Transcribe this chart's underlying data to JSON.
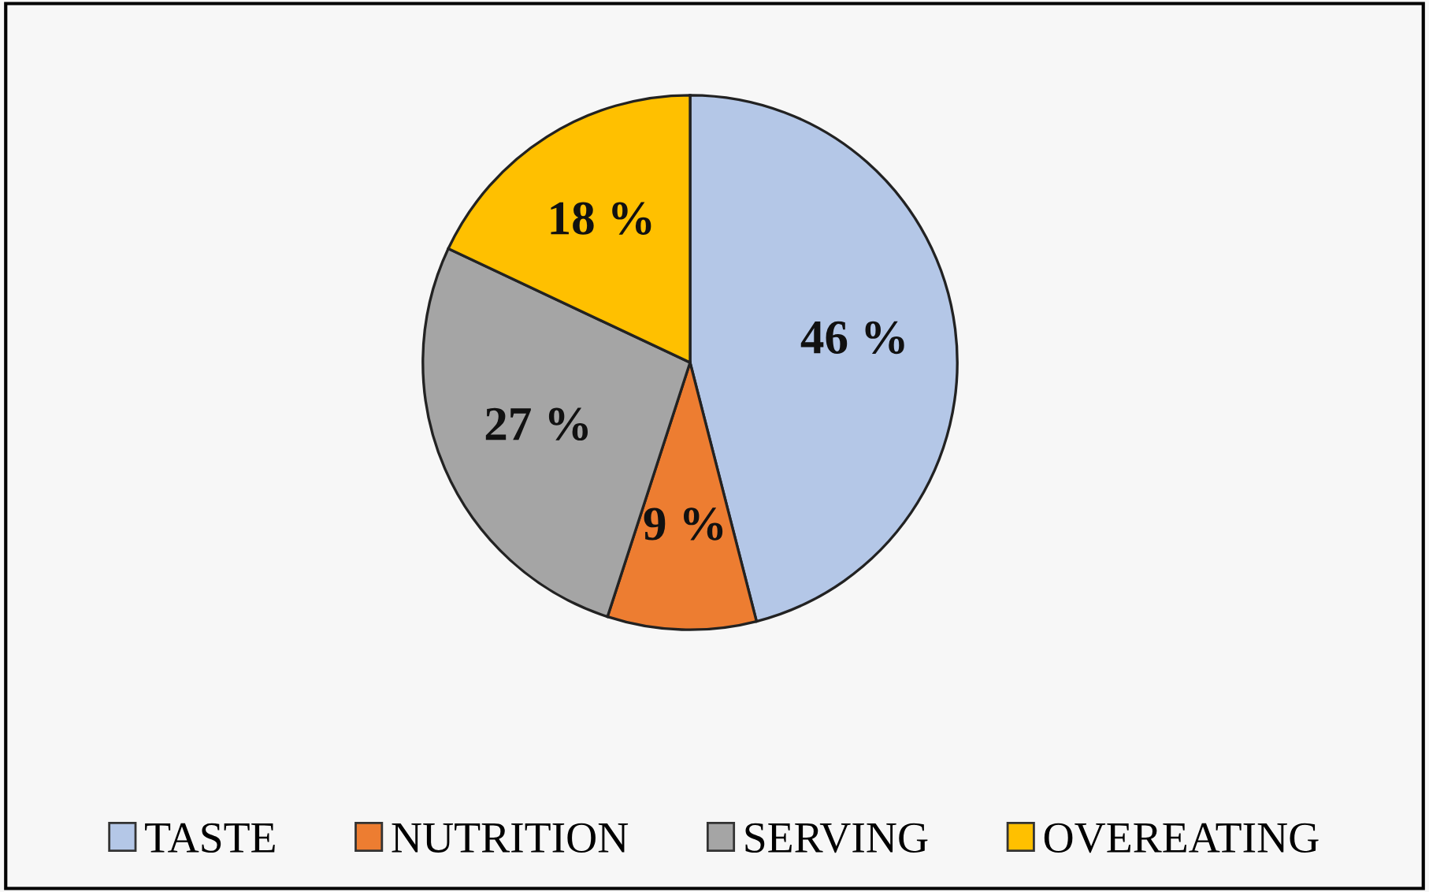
{
  "chart_data": {
    "type": "pie",
    "categories": [
      "TASTE",
      "NUTRITION",
      "SERVING",
      "OVEREATING"
    ],
    "values": [
      46,
      9,
      27,
      18
    ],
    "colors": [
      "#b4c7e7",
      "#ed7d31",
      "#a5a5a5",
      "#ffc000"
    ],
    "value_labels": [
      "46 %",
      "9 %",
      "27 %",
      "18 %"
    ],
    "legend": "bottom"
  }
}
